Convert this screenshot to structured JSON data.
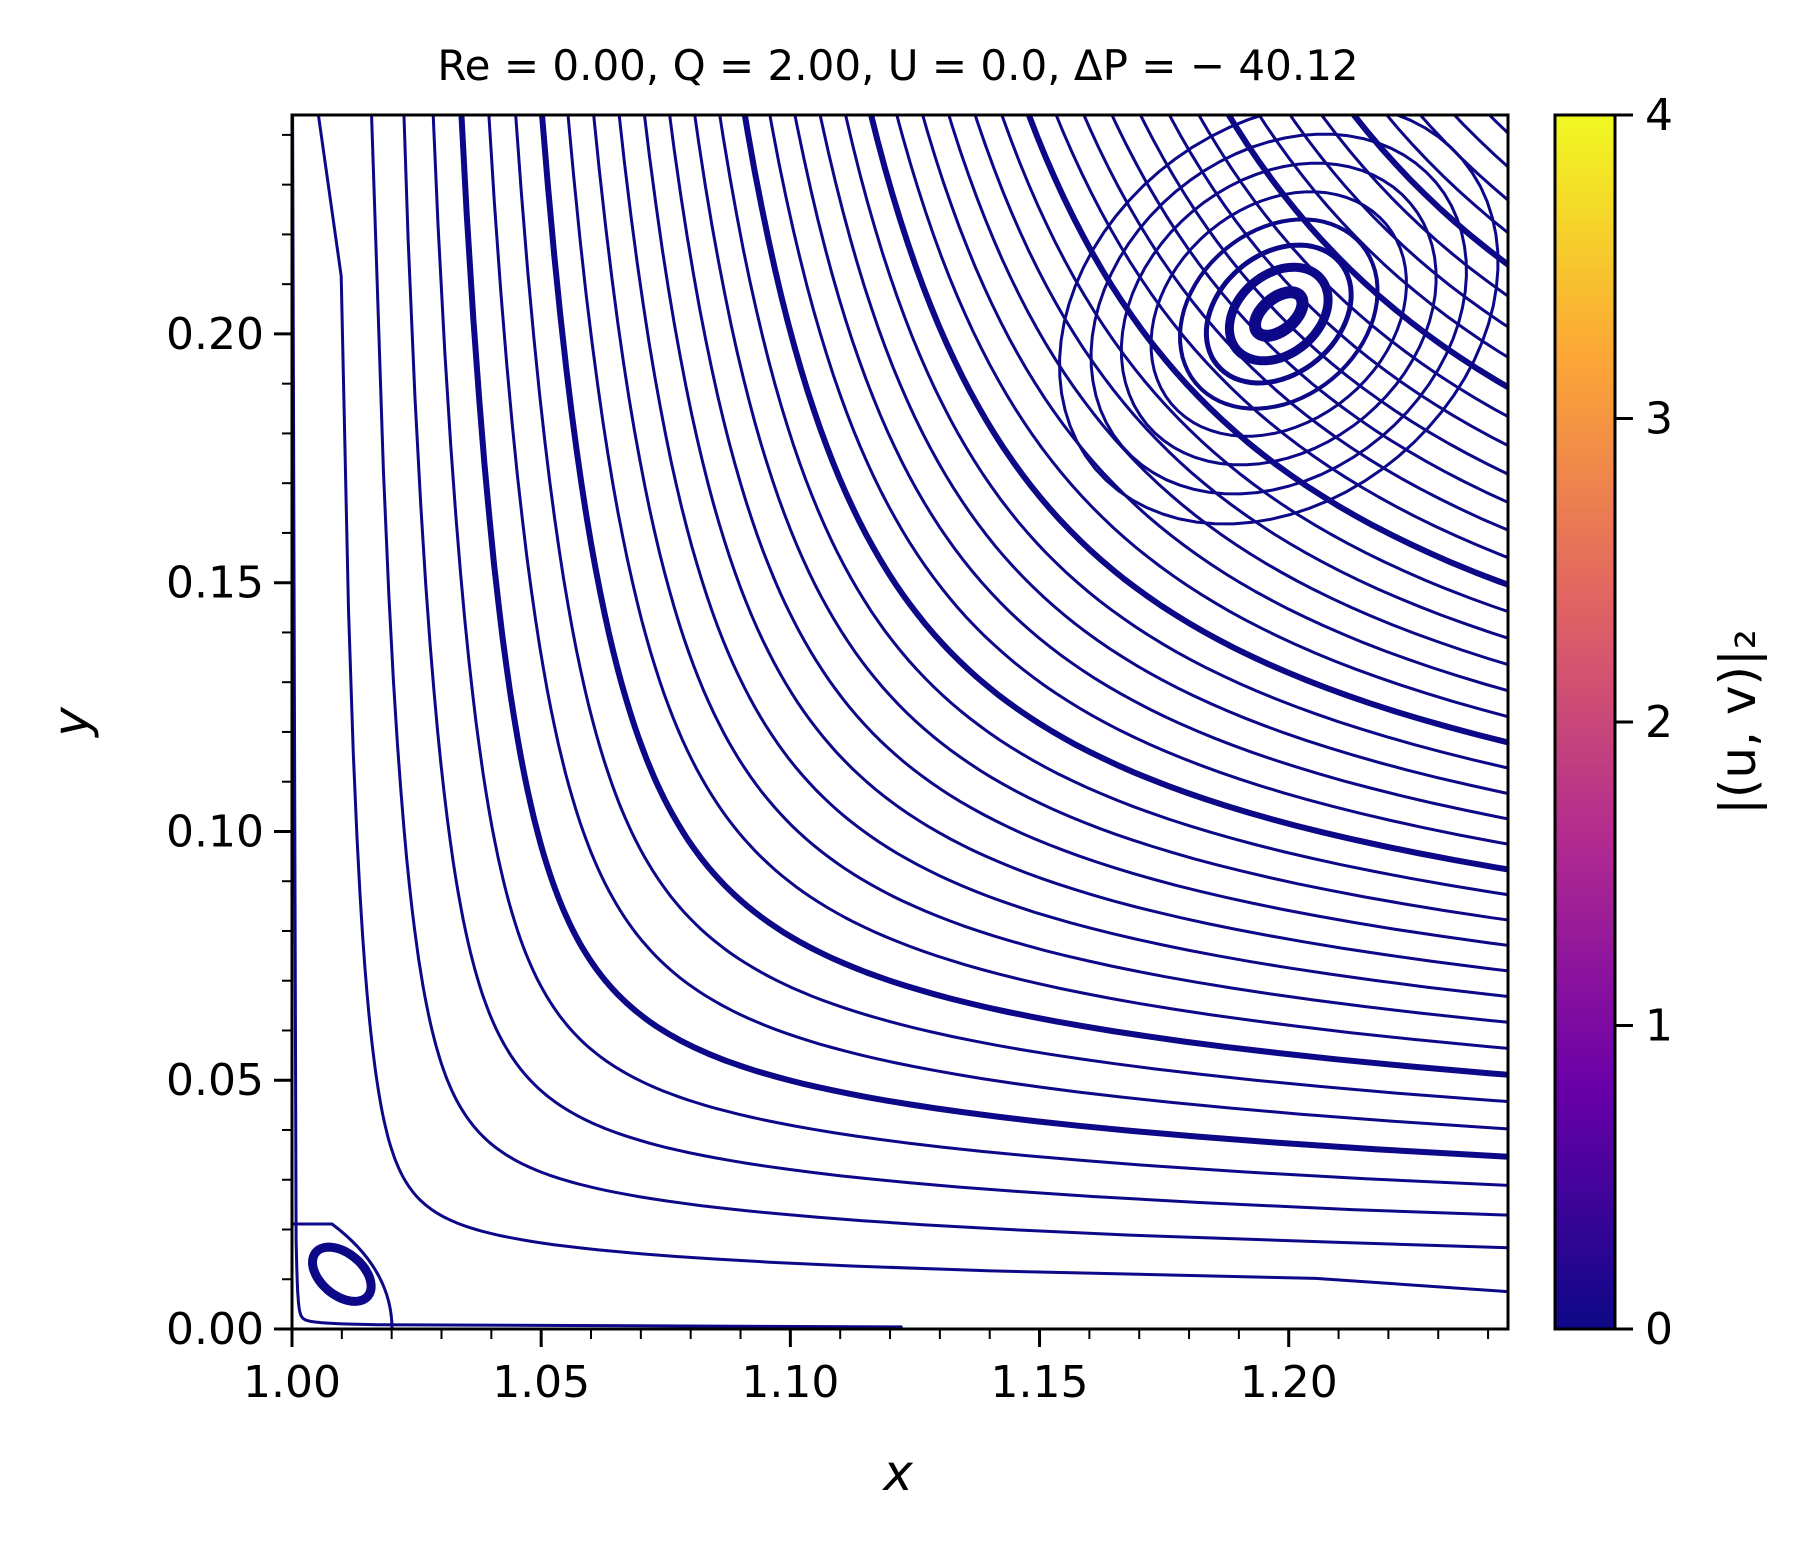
{
  "chart_data": {
    "type": "streamplot",
    "title": "Re = 0.00, Q = 2.00, U = 0.0, ΔP = − 40.12",
    "xlabel": "x",
    "ylabel": "y",
    "xlim": [
      1.0,
      1.244
    ],
    "ylim": [
      0.0,
      0.244
    ],
    "xticks": [
      {
        "value": 1.0,
        "label": "1.00"
      },
      {
        "value": 1.05,
        "label": "1.05"
      },
      {
        "value": 1.1,
        "label": "1.10"
      },
      {
        "value": 1.15,
        "label": "1.15"
      },
      {
        "value": 1.2,
        "label": "1.20"
      }
    ],
    "yticks": [
      {
        "value": 0.0,
        "label": "0.00"
      },
      {
        "value": 0.05,
        "label": "0.05"
      },
      {
        "value": 0.1,
        "label": "0.10"
      },
      {
        "value": 0.15,
        "label": "0.15"
      },
      {
        "value": 0.2,
        "label": "0.20"
      }
    ],
    "minor_tick_step": 0.01,
    "grid": false,
    "line_color": "#0d0887",
    "vortices": [
      {
        "name": "primary",
        "x": 1.198,
        "y": 0.204
      },
      {
        "name": "corner",
        "x": 1.01,
        "y": 0.011
      }
    ],
    "colorbar": {
      "label": "|(u, v)|₂",
      "min": 0,
      "max": 4,
      "colormap": "plasma",
      "ticks": [
        {
          "value": 0,
          "label": "0"
        },
        {
          "value": 1,
          "label": "1"
        },
        {
          "value": 2,
          "label": "2"
        },
        {
          "value": 3,
          "label": "3"
        },
        {
          "value": 4,
          "label": "4"
        }
      ],
      "stops": [
        "#0d0887",
        "#6a00a8",
        "#b12a90",
        "#e16462",
        "#fca636",
        "#f0f921"
      ]
    }
  }
}
